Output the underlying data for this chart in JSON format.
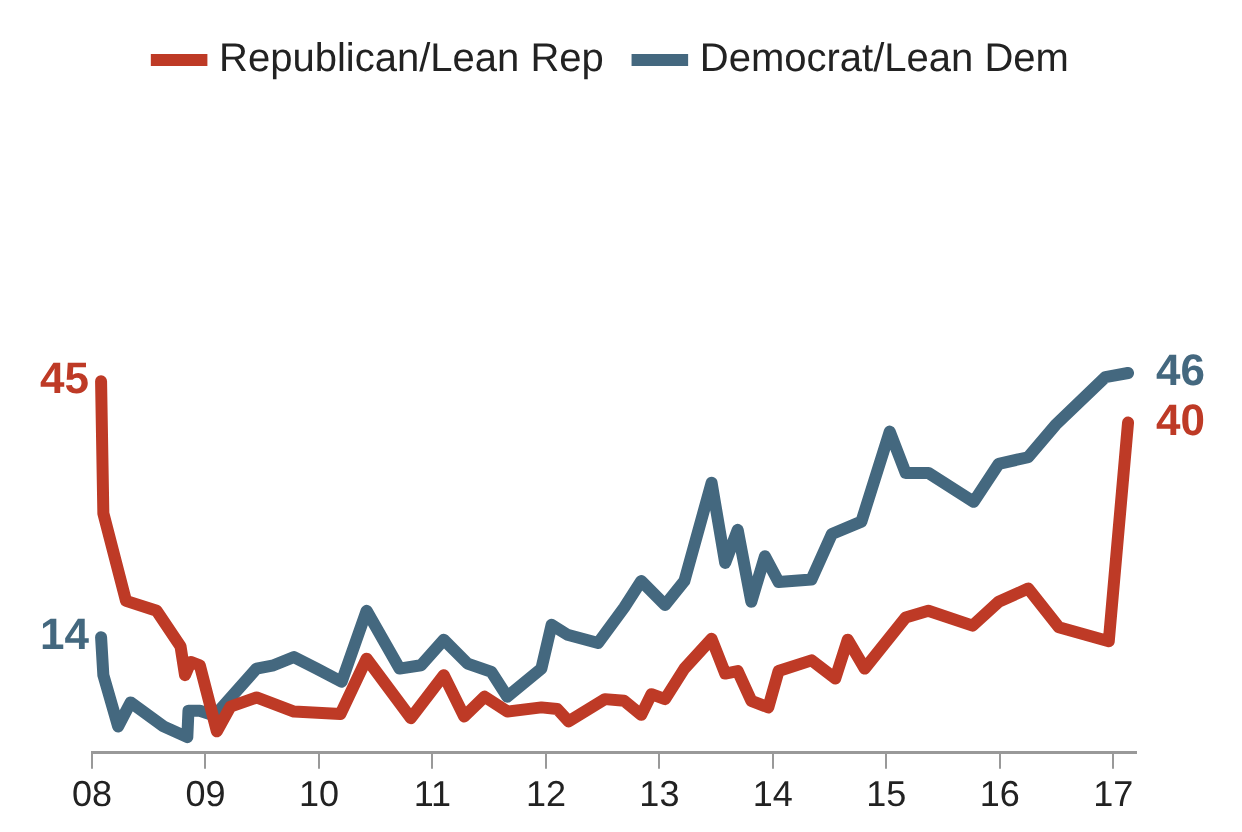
{
  "chart_data": {
    "type": "line",
    "xlim": [
      2008,
      2017.2
    ],
    "xticks": [
      {
        "value": 2008,
        "label": "08"
      },
      {
        "value": 2009,
        "label": "09"
      },
      {
        "value": 2010,
        "label": "10"
      },
      {
        "value": 2011,
        "label": "11"
      },
      {
        "value": 2012,
        "label": "12"
      },
      {
        "value": 2013,
        "label": "13"
      },
      {
        "value": 2014,
        "label": "14"
      },
      {
        "value": 2015,
        "label": "15"
      },
      {
        "value": 2016,
        "label": "16"
      },
      {
        "value": 2017,
        "label": "17"
      }
    ],
    "tick_labels": "x",
    "grid": false,
    "legend": "top",
    "marker": "none",
    "line_style": "solid",
    "series": [
      {
        "name": "Republican/Lean Rep",
        "color": "#be3a26",
        "x": [
          2008.08,
          2008.1,
          2008.3,
          2008.57,
          2008.78,
          2008.82,
          2008.87,
          2008.95,
          2009.1,
          2009.22,
          2009.45,
          2009.78,
          2010.19,
          2010.42,
          2010.81,
          2011.1,
          2011.28,
          2011.46,
          2011.66,
          2011.96,
          2012.1,
          2012.2,
          2012.52,
          2012.69,
          2012.84,
          2012.93,
          2013.05,
          2013.22,
          2013.46,
          2013.58,
          2013.69,
          2013.81,
          2013.96,
          2014.05,
          2014.34,
          2014.55,
          2014.66,
          2014.81,
          2015.17,
          2015.37,
          2015.76,
          2015.99,
          2016.25,
          2016.52,
          2016.96,
          2017.13
        ],
        "values": [
          45,
          29,
          18.4,
          17.2,
          12.9,
          9.4,
          11,
          10.6,
          2.6,
          5.6,
          6.7,
          5,
          4.7,
          11.4,
          4.2,
          9.4,
          4.4,
          6.8,
          5,
          5.5,
          5.3,
          3.8,
          6.5,
          6.3,
          4.6,
          7.1,
          6.5,
          10.2,
          13.8,
          9.6,
          9.9,
          6.3,
          5.5,
          9.9,
          11.2,
          9,
          13.7,
          10.2,
          16.4,
          17.2,
          15.4,
          18.3,
          19.9,
          15.2,
          13.5,
          40
        ],
        "value_labels": [
          "45",
          null,
          null,
          null,
          null,
          null,
          null,
          null,
          null,
          null,
          null,
          null,
          null,
          null,
          null,
          null,
          null,
          null,
          null,
          null,
          null,
          null,
          null,
          null,
          null,
          null,
          null,
          null,
          null,
          null,
          null,
          null,
          null,
          null,
          null,
          null,
          null,
          null,
          null,
          null,
          null,
          null,
          null,
          null,
          null,
          "40"
        ]
      },
      {
        "name": "Democrat/Lean Dem",
        "color": "#44687f",
        "x": [
          2008.08,
          2008.1,
          2008.23,
          2008.34,
          2008.63,
          2008.84,
          2008.85,
          2008.95,
          2009.08,
          2009.45,
          2009.6,
          2009.78,
          2009.98,
          2010.2,
          2010.42,
          2010.71,
          2010.9,
          2011.1,
          2011.31,
          2011.52,
          2011.66,
          2011.96,
          2012.05,
          2012.19,
          2012.46,
          2012.69,
          2012.84,
          2013.05,
          2013.22,
          2013.46,
          2013.58,
          2013.69,
          2013.81,
          2013.93,
          2014.05,
          2014.34,
          2014.52,
          2014.78,
          2015.03,
          2015.17,
          2015.37,
          2015.77,
          2015.99,
          2016.25,
          2016.49,
          2016.93,
          2017.13
        ],
        "values": [
          14,
          9.4,
          3.2,
          6.1,
          3.2,
          1.9,
          5.1,
          5.1,
          4.5,
          10.2,
          10.6,
          11.6,
          10.2,
          8.6,
          17.2,
          10.2,
          10.6,
          13.7,
          10.8,
          9.8,
          6.8,
          10.2,
          15.5,
          14.3,
          13.3,
          17.6,
          20.8,
          17.9,
          20.8,
          32.7,
          23,
          27,
          18.3,
          23.8,
          20.7,
          21,
          26.5,
          28,
          38.9,
          33.9,
          33.9,
          30.4,
          35,
          35.8,
          39.7,
          45.5,
          46
        ],
        "value_labels": [
          "14",
          null,
          null,
          null,
          null,
          null,
          null,
          null,
          null,
          null,
          null,
          null,
          null,
          null,
          null,
          null,
          null,
          null,
          null,
          null,
          null,
          null,
          null,
          null,
          null,
          null,
          null,
          null,
          null,
          null,
          null,
          null,
          null,
          null,
          null,
          null,
          null,
          null,
          null,
          null,
          null,
          null,
          null,
          null,
          null,
          null,
          "46"
        ]
      }
    ]
  }
}
